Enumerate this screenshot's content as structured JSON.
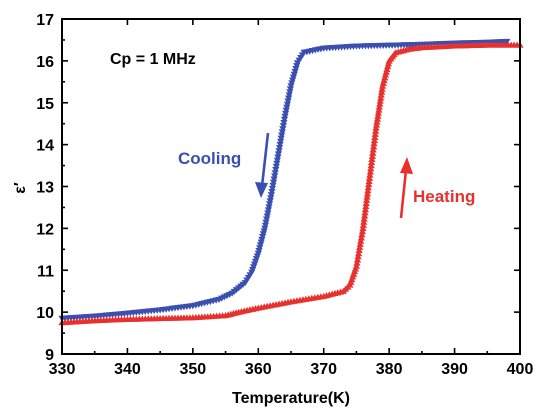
{
  "chart_data": {
    "type": "scatter",
    "title": "",
    "xlabel": "Temperature(K)",
    "ylabel": "ε′",
    "xlim": [
      330,
      400
    ],
    "ylim": [
      9,
      17
    ],
    "xticks": [
      330,
      340,
      350,
      360,
      370,
      380,
      390,
      400
    ],
    "yticks": [
      9,
      10,
      11,
      12,
      13,
      14,
      15,
      16,
      17
    ],
    "grid": false,
    "annotation": "Cp = 1 MHz",
    "series": [
      {
        "name": "Cooling",
        "marker": "triangle-down",
        "color": "#3a4fb0",
        "arrow": "down",
        "x": [
          330,
          335,
          340,
          345,
          350,
          354,
          356,
          358,
          359,
          360,
          361,
          362,
          363,
          364,
          365,
          366,
          367,
          370,
          375,
          380,
          385,
          390,
          395,
          398
        ],
        "y": [
          9.85,
          9.9,
          9.97,
          10.05,
          10.15,
          10.3,
          10.45,
          10.7,
          10.95,
          11.4,
          12.0,
          12.8,
          13.7,
          14.6,
          15.4,
          15.95,
          16.2,
          16.3,
          16.35,
          16.37,
          16.39,
          16.42,
          16.44,
          16.46
        ]
      },
      {
        "name": "Heating",
        "marker": "triangle-up",
        "color": "#e8302e",
        "arrow": "up",
        "x": [
          330,
          335,
          340,
          345,
          350,
          355,
          357,
          360,
          365,
          370,
          373,
          374,
          375,
          376,
          377,
          378,
          379,
          380,
          381,
          383,
          385,
          390,
          395,
          400
        ],
        "y": [
          9.75,
          9.8,
          9.83,
          9.85,
          9.87,
          9.92,
          10.0,
          10.1,
          10.25,
          10.38,
          10.5,
          10.65,
          11.1,
          12.0,
          13.2,
          14.4,
          15.4,
          16.0,
          16.2,
          16.28,
          16.32,
          16.36,
          16.38,
          16.38
        ]
      }
    ]
  }
}
